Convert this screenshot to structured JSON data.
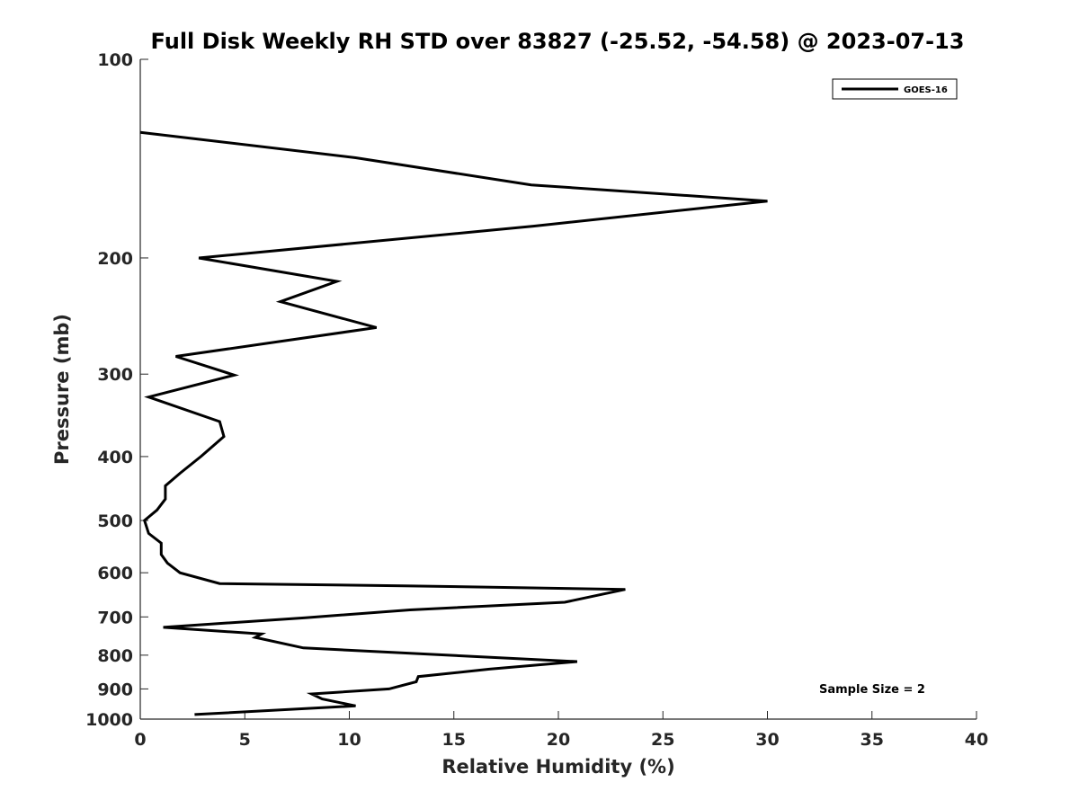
{
  "chart_data": {
    "type": "line",
    "title": "Full Disk Weekly RH STD over 83827 (-25.52, -54.58) @ 2023-07-13",
    "xlabel": "Relative Humidity (%)",
    "ylabel": "Pressure (mb)",
    "xlim": [
      0,
      40
    ],
    "ylim": [
      100,
      1000
    ],
    "y_scale": "log",
    "y_reversed": true,
    "grid": false,
    "legend_position": "top-right",
    "xticks": [
      0,
      5,
      10,
      15,
      20,
      25,
      30,
      35,
      40
    ],
    "xtick_labels": [
      "0",
      "5",
      "10",
      "15",
      "20",
      "25",
      "30",
      "35",
      "40"
    ],
    "yticks": [
      100,
      200,
      300,
      400,
      500,
      600,
      700,
      800,
      900,
      1000
    ],
    "ytick_labels": [
      "100",
      "200",
      "300",
      "400",
      "500",
      "600",
      "700",
      "800",
      "900",
      "1000"
    ],
    "series": [
      {
        "name": "GOES-16",
        "color": "#000000",
        "x": [
          0.0,
          10.3,
          18.7,
          30.0,
          18.8,
          2.8,
          9.4,
          6.7,
          11.3,
          1.7,
          4.5,
          0.4,
          3.8,
          4.0,
          2.9,
          1.9,
          1.2,
          1.2,
          0.8,
          0.2,
          0.4,
          1.0,
          1.0,
          1.3,
          1.9,
          3.8,
          12.6,
          23.2,
          20.3,
          12.9,
          7.9,
          1.1,
          5.8,
          5.5,
          7.8,
          20.9,
          16.7,
          13.3,
          13.2,
          11.9,
          8.2,
          8.7,
          10.3,
          2.6
        ],
        "y": [
          129,
          141,
          155,
          164,
          179,
          200,
          217,
          233,
          255,
          282,
          301,
          325,
          354,
          373,
          400,
          424,
          443,
          464,
          482,
          500,
          523,
          541,
          563,
          580,
          600,
          623,
          628,
          636,
          665,
          683,
          702,
          726,
          743,
          752,
          780,
          818,
          840,
          862,
          878,
          900,
          916,
          932,
          955,
          984
        ]
      }
    ],
    "annotations": [
      "Sample Size = 2"
    ]
  }
}
